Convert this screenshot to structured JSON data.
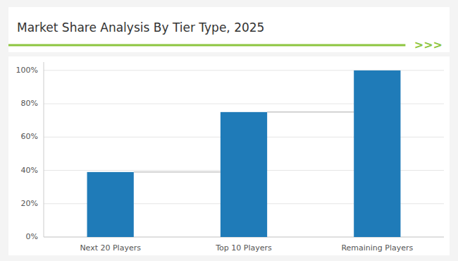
{
  "chart_data": {
    "type": "bar",
    "title": "Market Share Analysis By Tier Type, 2025",
    "annotations": [
      ">>>"
    ],
    "categories": [
      "Next 20 Players",
      "Top 10 Players",
      "Remaining Players"
    ],
    "values": [
      39,
      75,
      100
    ],
    "color": "#1F7BB8",
    "ylim": [
      0,
      105
    ],
    "yticks": [
      {
        "value": 0,
        "label": "0%"
      },
      {
        "value": 20,
        "label": "20%"
      },
      {
        "value": 40,
        "label": "40%"
      },
      {
        "value": 60,
        "label": "60%"
      },
      {
        "value": 80,
        "label": "80%"
      },
      {
        "value": 100,
        "label": "100%"
      }
    ],
    "grid": true
  }
}
